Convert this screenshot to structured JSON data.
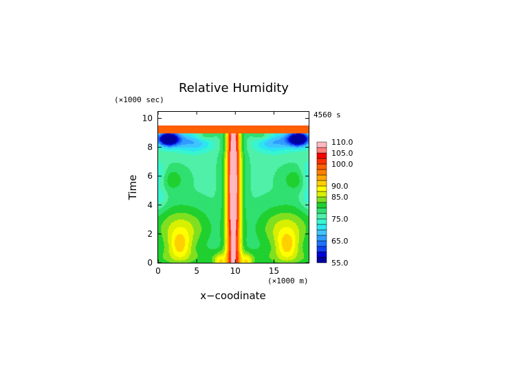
{
  "chart_data": {
    "type": "heatmap",
    "title": "Relative Humidity",
    "xlabel": "x−coodinate",
    "ylabel": "Time",
    "x_unit": "(×1000 m)",
    "y_unit": "(×1000 sec)",
    "time_stamp": "4560 s",
    "xlim": [
      0,
      19.5
    ],
    "ylim": [
      0,
      10.5
    ],
    "x_ticks": [
      0,
      5,
      10,
      15
    ],
    "y_ticks": [
      0,
      2,
      4,
      6,
      8,
      10
    ],
    "data_top": 9.8,
    "colorbar": {
      "levels": [
        55,
        57.5,
        60,
        62.5,
        65,
        67.5,
        70,
        72.5,
        75,
        77.5,
        80,
        82.5,
        85,
        87.5,
        90,
        92.5,
        95,
        97.5,
        100,
        102.5,
        105,
        107.5,
        110
      ],
      "labels": [
        "55.0",
        "65.0",
        "75.0",
        "85.0",
        "90.0",
        "100.0",
        "105.0",
        "110.0"
      ],
      "colors": [
        "#0000a0",
        "#0000d8",
        "#1040f0",
        "#2070ff",
        "#2f9cff",
        "#3fc4ff",
        "#2ce6f0",
        "#38f5d0",
        "#50f0a8",
        "#30e070",
        "#20d030",
        "#80e020",
        "#d8f000",
        "#ffff00",
        "#ffd000",
        "#ffa800",
        "#ff8000",
        "#ff6000",
        "#ff3000",
        "#f80000",
        "#ff8080",
        "#ffb8c0"
      ]
    }
  }
}
